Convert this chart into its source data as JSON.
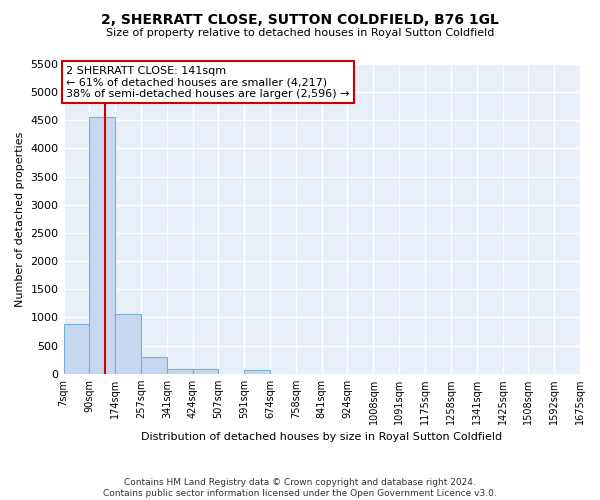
{
  "title": "2, SHERRATT CLOSE, SUTTON COLDFIELD, B76 1GL",
  "subtitle": "Size of property relative to detached houses in Royal Sutton Coldfield",
  "xlabel": "Distribution of detached houses by size in Royal Sutton Coldfield",
  "ylabel": "Number of detached properties",
  "footer_line1": "Contains HM Land Registry data © Crown copyright and database right 2024.",
  "footer_line2": "Contains public sector information licensed under the Open Government Licence v3.0.",
  "bins": [
    7,
    90,
    174,
    257,
    341,
    424,
    507,
    591,
    674,
    758,
    841,
    924,
    1008,
    1091,
    1175,
    1258,
    1341,
    1425,
    1508,
    1592,
    1675
  ],
  "counts": [
    880,
    4560,
    1060,
    290,
    90,
    80,
    0,
    60,
    0,
    0,
    0,
    0,
    0,
    0,
    0,
    0,
    0,
    0,
    0,
    0
  ],
  "bar_color": "#c5d8f0",
  "bar_edge_color": "#7bafd4",
  "background_color": "#e8eff8",
  "grid_color": "#ffffff",
  "vline_x": 141,
  "vline_color": "#cc0000",
  "ann_line1": "2 SHERRATT CLOSE: 141sqm",
  "ann_line2": "← 61% of detached houses are smaller (4,217)",
  "ann_line3": "38% of semi-detached houses are larger (2,596) →",
  "annotation_box_color": "#ffffff",
  "annotation_box_edge": "#cc0000",
  "ylim": [
    0,
    5500
  ],
  "yticks": [
    0,
    500,
    1000,
    1500,
    2000,
    2500,
    3000,
    3500,
    4000,
    4500,
    5000,
    5500
  ],
  "tick_labels": [
    "7sqm",
    "90sqm",
    "174sqm",
    "257sqm",
    "341sqm",
    "424sqm",
    "507sqm",
    "591sqm",
    "674sqm",
    "758sqm",
    "841sqm",
    "924sqm",
    "1008sqm",
    "1091sqm",
    "1175sqm",
    "1258sqm",
    "1341sqm",
    "1425sqm",
    "1508sqm",
    "1592sqm",
    "1675sqm"
  ]
}
